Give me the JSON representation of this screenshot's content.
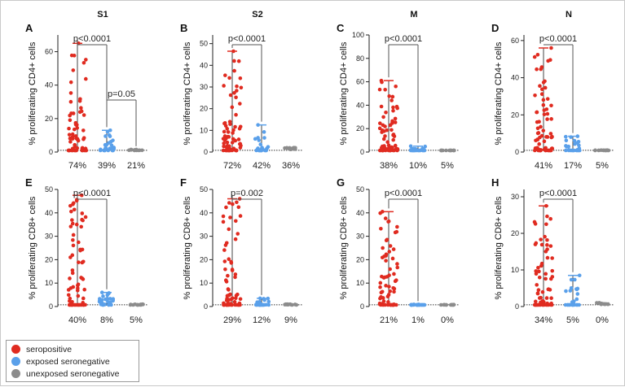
{
  "chart_data": [
    {
      "panel": "A",
      "column_title": "S1",
      "type": "scatter",
      "ylabel": "% proliferating CD4+ cells",
      "ylim": [
        0,
        70
      ],
      "yticks": [
        0,
        20,
        40,
        60
      ],
      "groups": [
        {
          "name": "seropositive",
          "pct": "74%",
          "max": 65
        },
        {
          "name": "exposed seronegative",
          "pct": "39%",
          "max": 13
        },
        {
          "name": "unexposed seronegative",
          "pct": "21%",
          "max": 1.5
        }
      ],
      "annotations": [
        {
          "text": "p<0.0001",
          "from": 0,
          "to": 1
        },
        {
          "text": "p=0.05",
          "from": 1,
          "to": 2
        }
      ]
    },
    {
      "panel": "B",
      "column_title": "S2",
      "type": "scatter",
      "ylabel": "% proliferating CD4+ cells",
      "ylim": [
        0,
        54
      ],
      "yticks": [
        0,
        10,
        20,
        30,
        40,
        50
      ],
      "groups": [
        {
          "name": "seropositive",
          "pct": "72%",
          "max": 46.5
        },
        {
          "name": "exposed seronegative",
          "pct": "42%",
          "max": 12.5
        },
        {
          "name": "unexposed seronegative",
          "pct": "36%",
          "max": 2
        }
      ],
      "annotations": [
        {
          "text": "p<0.0001",
          "from": 0,
          "to": 1
        }
      ]
    },
    {
      "panel": "C",
      "column_title": "M",
      "type": "scatter",
      "ylabel": "% proliferating CD4+ cells",
      "ylim": [
        0,
        100
      ],
      "yticks": [
        0,
        20,
        40,
        60,
        80,
        100
      ],
      "groups": [
        {
          "name": "seropositive",
          "pct": "38%",
          "max": 61
        },
        {
          "name": "exposed seronegative",
          "pct": "10%",
          "max": 5
        },
        {
          "name": "unexposed seronegative",
          "pct": "5%",
          "max": 1
        }
      ],
      "annotations": [
        {
          "text": "p<0.0001",
          "from": 0,
          "to": 1
        }
      ]
    },
    {
      "panel": "D",
      "column_title": "N",
      "type": "scatter",
      "ylabel": "% proliferating CD4+ cells",
      "ylim": [
        0,
        63
      ],
      "yticks": [
        0,
        20,
        40,
        60
      ],
      "groups": [
        {
          "name": "seropositive",
          "pct": "41%",
          "max": 56
        },
        {
          "name": "exposed seronegative",
          "pct": "17%",
          "max": 8.5
        },
        {
          "name": "unexposed seronegative",
          "pct": "5%",
          "max": 1
        }
      ],
      "annotations": [
        {
          "text": "p<0.0001",
          "from": 0,
          "to": 1
        }
      ]
    },
    {
      "panel": "E",
      "column_title": "",
      "type": "scatter",
      "ylabel": "% proliferating CD8+ cells",
      "ylim": [
        0,
        50
      ],
      "yticks": [
        0,
        10,
        20,
        30,
        40,
        50
      ],
      "groups": [
        {
          "name": "seropositive",
          "pct": "40%",
          "max": 47.5
        },
        {
          "name": "exposed seronegative",
          "pct": "8%",
          "max": 6
        },
        {
          "name": "unexposed seronegative",
          "pct": "5%",
          "max": 1
        }
      ],
      "annotations": [
        {
          "text": "p<0.0001",
          "from": 0,
          "to": 1
        }
      ]
    },
    {
      "panel": "F",
      "column_title": "",
      "type": "scatter",
      "ylabel": "% proliferating CD8+ cells",
      "ylim": [
        0,
        50
      ],
      "yticks": [
        0,
        10,
        20,
        30,
        40,
        50
      ],
      "groups": [
        {
          "name": "seropositive",
          "pct": "29%",
          "max": 46
        },
        {
          "name": "exposed seronegative",
          "pct": "12%",
          "max": 3.5
        },
        {
          "name": "unexposed seronegative",
          "pct": "9%",
          "max": 1
        }
      ],
      "annotations": [
        {
          "text": "p=0.002",
          "from": 0,
          "to": 1
        }
      ]
    },
    {
      "panel": "G",
      "column_title": "",
      "type": "scatter",
      "ylabel": "% proliferating CD8+ cells",
      "ylim": [
        0,
        50
      ],
      "yticks": [
        0,
        10,
        20,
        30,
        40,
        50
      ],
      "groups": [
        {
          "name": "seropositive",
          "pct": "21%",
          "max": 40.5
        },
        {
          "name": "exposed seronegative",
          "pct": "1%",
          "max": 0.9
        },
        {
          "name": "unexposed seronegative",
          "pct": "0%",
          "max": 0.8
        }
      ],
      "annotations": [
        {
          "text": "p<0.0001",
          "from": 0,
          "to": 1
        }
      ]
    },
    {
      "panel": "H",
      "column_title": "",
      "type": "scatter",
      "ylabel": "% proliferating CD8+ cells",
      "ylim": [
        0,
        32
      ],
      "yticks": [
        0,
        10,
        20,
        30
      ],
      "groups": [
        {
          "name": "seropositive",
          "pct": "34%",
          "max": 27.5
        },
        {
          "name": "exposed seronegative",
          "pct": "5%",
          "max": 8.5
        },
        {
          "name": "unexposed seronegative",
          "pct": "0%",
          "max": 1
        }
      ],
      "annotations": [
        {
          "text": "p<0.0001",
          "from": 0,
          "to": 1
        }
      ]
    }
  ],
  "legend": {
    "items": [
      {
        "label": "seropositive",
        "color": "#e02b20"
      },
      {
        "label": "exposed seronegative",
        "color": "#5aa0ea"
      },
      {
        "label": "unexposed seronegative",
        "color": "#8c8c8c"
      }
    ]
  }
}
